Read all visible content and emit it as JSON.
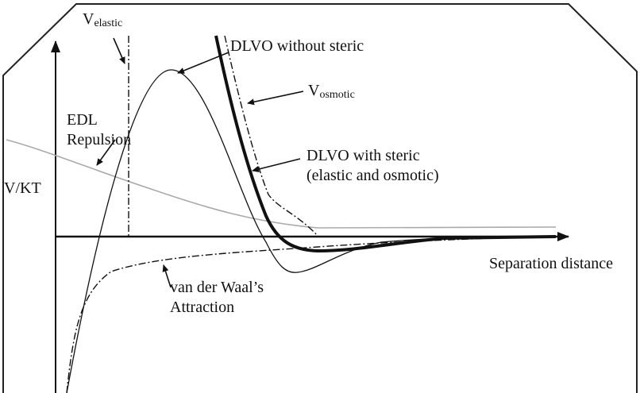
{
  "labels": {
    "v_elastic": {
      "main": "V",
      "sub": "elastic"
    },
    "dlvo_without": "DLVO without steric",
    "v_osmotic": {
      "main": "V",
      "sub": "osmotic"
    },
    "edl": [
      "EDL",
      "Repulsion"
    ],
    "y_axis": "V/KT",
    "dlvo_with": [
      "DLVO with steric",
      "(elastic and osmotic)"
    ],
    "x_axis": "Separation distance",
    "vdw": [
      "van der Waal’s",
      "Attraction"
    ]
  }
}
